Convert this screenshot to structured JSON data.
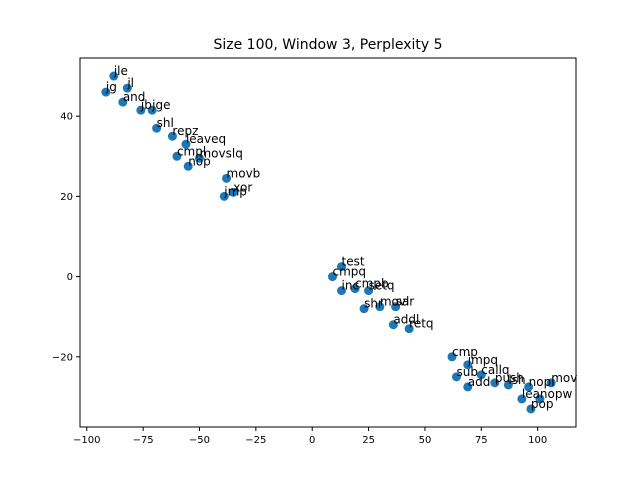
{
  "chart_data": {
    "type": "scatter",
    "title": "Size 100, Window 3, Perplexity 5",
    "xlabel": "",
    "ylabel": "",
    "xlim": [
      -103,
      117
    ],
    "ylim": [
      -37.5,
      54.5
    ],
    "xticks": [
      -100,
      -75,
      -50,
      -25,
      0,
      25,
      50,
      75,
      100
    ],
    "yticks": [
      -20,
      0,
      20,
      40
    ],
    "grid": false,
    "point_color": "#1f77b4",
    "points": [
      {
        "label": "jle",
        "x": -88,
        "y": 50
      },
      {
        "label": "jg",
        "x": -91.5,
        "y": 46
      },
      {
        "label": "jl",
        "x": -82,
        "y": 47
      },
      {
        "label": "and",
        "x": -84,
        "y": 43.5
      },
      {
        "label": "jb",
        "x": -76,
        "y": 41.5
      },
      {
        "label": "jge",
        "x": -71,
        "y": 41.5
      },
      {
        "label": "shl",
        "x": -69,
        "y": 37
      },
      {
        "label": "repz",
        "x": -62,
        "y": 35
      },
      {
        "label": "leaveq",
        "x": -56,
        "y": 33
      },
      {
        "label": "cmpl",
        "x": -60,
        "y": 30
      },
      {
        "label": "movslq",
        "x": -50,
        "y": 29.5
      },
      {
        "label": "nop",
        "x": -55,
        "y": 27.5
      },
      {
        "label": "movb",
        "x": -38,
        "y": 24.5
      },
      {
        "label": "xor",
        "x": -35,
        "y": 21
      },
      {
        "label": "jmp",
        "x": -39,
        "y": 20
      },
      {
        "label": "test",
        "x": 13,
        "y": 2.5
      },
      {
        "label": "cmpq",
        "x": 9,
        "y": 0
      },
      {
        "label": "inc",
        "x": 13,
        "y": -3.5
      },
      {
        "label": "cmpb",
        "x": 19,
        "y": -3
      },
      {
        "label": "setq",
        "x": 25,
        "y": -3.5
      },
      {
        "label": "shr",
        "x": 23,
        "y": -8
      },
      {
        "label": "movl",
        "x": 30,
        "y": -7.5
      },
      {
        "label": "sar",
        "x": 37,
        "y": -7.5
      },
      {
        "label": "addl",
        "x": 36,
        "y": -12
      },
      {
        "label": "retq",
        "x": 43,
        "y": -13
      },
      {
        "label": "cmp",
        "x": 62,
        "y": -20
      },
      {
        "label": "jmpq",
        "x": 69,
        "y": -22
      },
      {
        "label": "sub",
        "x": 64,
        "y": -25
      },
      {
        "label": "callq",
        "x": 75,
        "y": -24.5
      },
      {
        "label": "add",
        "x": 69,
        "y": -27.5
      },
      {
        "label": "push",
        "x": 81,
        "y": -26.5
      },
      {
        "label": "lsh",
        "x": 87,
        "y": -27
      },
      {
        "label": "nopl",
        "x": 96,
        "y": -27.5
      },
      {
        "label": "mov",
        "x": 106,
        "y": -26.5
      },
      {
        "label": "lea",
        "x": 93,
        "y": -30.5
      },
      {
        "label": "nopw",
        "x": 101,
        "y": -30.5
      },
      {
        "label": "pop",
        "x": 97,
        "y": -33
      }
    ]
  }
}
